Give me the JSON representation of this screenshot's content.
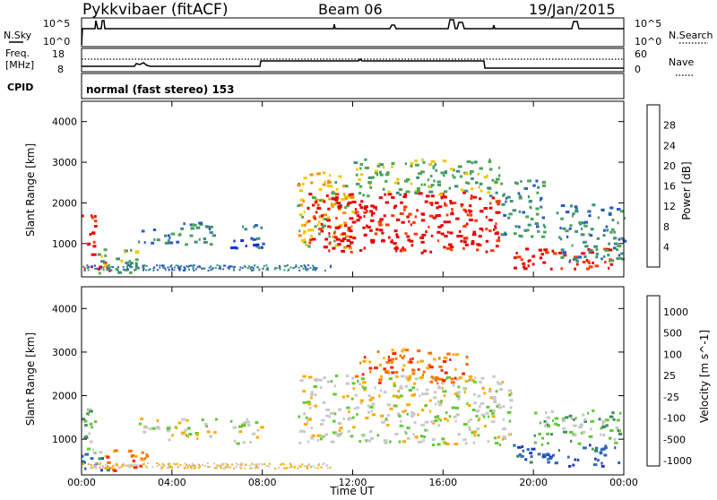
{
  "header": {
    "title": "Pykkvibaer (fitACF)",
    "beam": "Beam 06",
    "date": "19/Jan/2015"
  },
  "nsky_panel": {
    "left_label": "N.Sky",
    "left_tick_top": "10^5",
    "left_tick_bottom": "10^0",
    "right_tick_top": "10^5",
    "right_tick_bottom": "10^0",
    "right_label": "N.Search"
  },
  "freq_panel": {
    "left_label_1": "Freq.",
    "left_label_2": "[MHz]",
    "left_tick_top": "18",
    "left_tick_bottom": "8",
    "right_tick_top": "60",
    "right_tick_bottom": "0",
    "right_label": "Nave"
  },
  "cpid": {
    "label": "CPID",
    "text": "normal (fast stereo) 153"
  },
  "colors": {
    "power_scale": [
      "#1030e0",
      "#2a58c8",
      "#3d8f7a",
      "#4aa655",
      "#f0c800",
      "#ff8c00",
      "#ff3a00",
      "#e80000"
    ],
    "velocity_scale": [
      "#1e3ec8",
      "#2f6bb4",
      "#3a8c5a",
      "#62c83a",
      "#c8c8c8",
      "#ffaa00",
      "#ff7000",
      "#ff2000",
      "#e00000"
    ]
  },
  "chart_data": [
    {
      "type": "heatmap",
      "name": "power",
      "ylabel": "Slant Range [km]",
      "ylim": [
        180,
        4500
      ],
      "yticks": [
        "1000",
        "2000",
        "3000",
        "4000"
      ],
      "xlim": [
        "00:00",
        "24:00"
      ],
      "xticks": [
        "00:00",
        "04:00",
        "08:00",
        "12:00",
        "16:00",
        "20:00",
        "00:00"
      ],
      "colorbar": {
        "label": "Power [dB]",
        "ticks": [
          "4",
          "8",
          "12",
          "16",
          "20",
          "24",
          "28"
        ]
      },
      "regions": [
        {
          "t0": 0.0,
          "t1": 0.6,
          "r0": 700,
          "r1": 1800,
          "level": 7
        },
        {
          "t0": 0.0,
          "t1": 1.2,
          "r0": 300,
          "r1": 600,
          "level": 7
        },
        {
          "t0": 0.6,
          "t1": 2.6,
          "r0": 300,
          "r1": 900,
          "level": 3
        },
        {
          "t0": 2.5,
          "t1": 5.8,
          "r0": 1000,
          "r1": 1550,
          "level": 2
        },
        {
          "t0": 6.5,
          "t1": 8.0,
          "r0": 900,
          "r1": 1500,
          "level": 1
        },
        {
          "t0": 9.5,
          "t1": 12.0,
          "r0": 900,
          "r1": 2800,
          "level": 4
        },
        {
          "t0": 10.0,
          "t1": 18.5,
          "r0": 800,
          "r1": 2300,
          "level": 7
        },
        {
          "t0": 12.0,
          "t1": 18.5,
          "r0": 2200,
          "r1": 3100,
          "level": 3
        },
        {
          "t0": 18.5,
          "t1": 20.5,
          "r0": 1200,
          "r1": 2600,
          "level": 2
        },
        {
          "t0": 19.0,
          "t1": 23.5,
          "r0": 400,
          "r1": 900,
          "level": 7
        },
        {
          "t0": 21.0,
          "t1": 24.0,
          "r0": 600,
          "r1": 2000,
          "level": 2
        }
      ]
    },
    {
      "type": "heatmap",
      "name": "velocity",
      "ylabel": "Slant Range [km]",
      "ylim": [
        180,
        4500
      ],
      "yticks": [
        "1000",
        "2000",
        "3000",
        "4000"
      ],
      "xlim": [
        "00:00",
        "24:00"
      ],
      "xticks": [
        "00:00",
        "04:00",
        "08:00",
        "12:00",
        "16:00",
        "20:00",
        "00:00"
      ],
      "xlabel": "Time UT",
      "colorbar": {
        "label": "Velocity [m s^-1]",
        "ticks": [
          "1000",
          "500",
          "100",
          "25",
          "-25",
          "-100",
          "-500",
          "-1000"
        ]
      },
      "regions": [
        {
          "t0": 0.0,
          "t1": 0.8,
          "r0": 700,
          "r1": 1800,
          "level": 3
        },
        {
          "t0": 0.0,
          "t1": 1.5,
          "r0": 300,
          "r1": 700,
          "level": 1
        },
        {
          "t0": 1.0,
          "t1": 3.0,
          "r0": 300,
          "r1": 800,
          "level": 6
        },
        {
          "t0": 2.5,
          "t1": 6.0,
          "r0": 1000,
          "r1": 1500,
          "level": 4
        },
        {
          "t0": 6.5,
          "t1": 8.0,
          "r0": 900,
          "r1": 1500,
          "level": 4
        },
        {
          "t0": 9.5,
          "t1": 19.0,
          "r0": 900,
          "r1": 2500,
          "level": 4
        },
        {
          "t0": 12.0,
          "t1": 17.0,
          "r0": 2300,
          "r1": 3100,
          "level": 6
        },
        {
          "t0": 19.0,
          "t1": 23.8,
          "r0": 400,
          "r1": 900,
          "level": 1
        },
        {
          "t0": 20.0,
          "t1": 24.0,
          "r0": 900,
          "r1": 1700,
          "level": 3
        }
      ]
    }
  ]
}
